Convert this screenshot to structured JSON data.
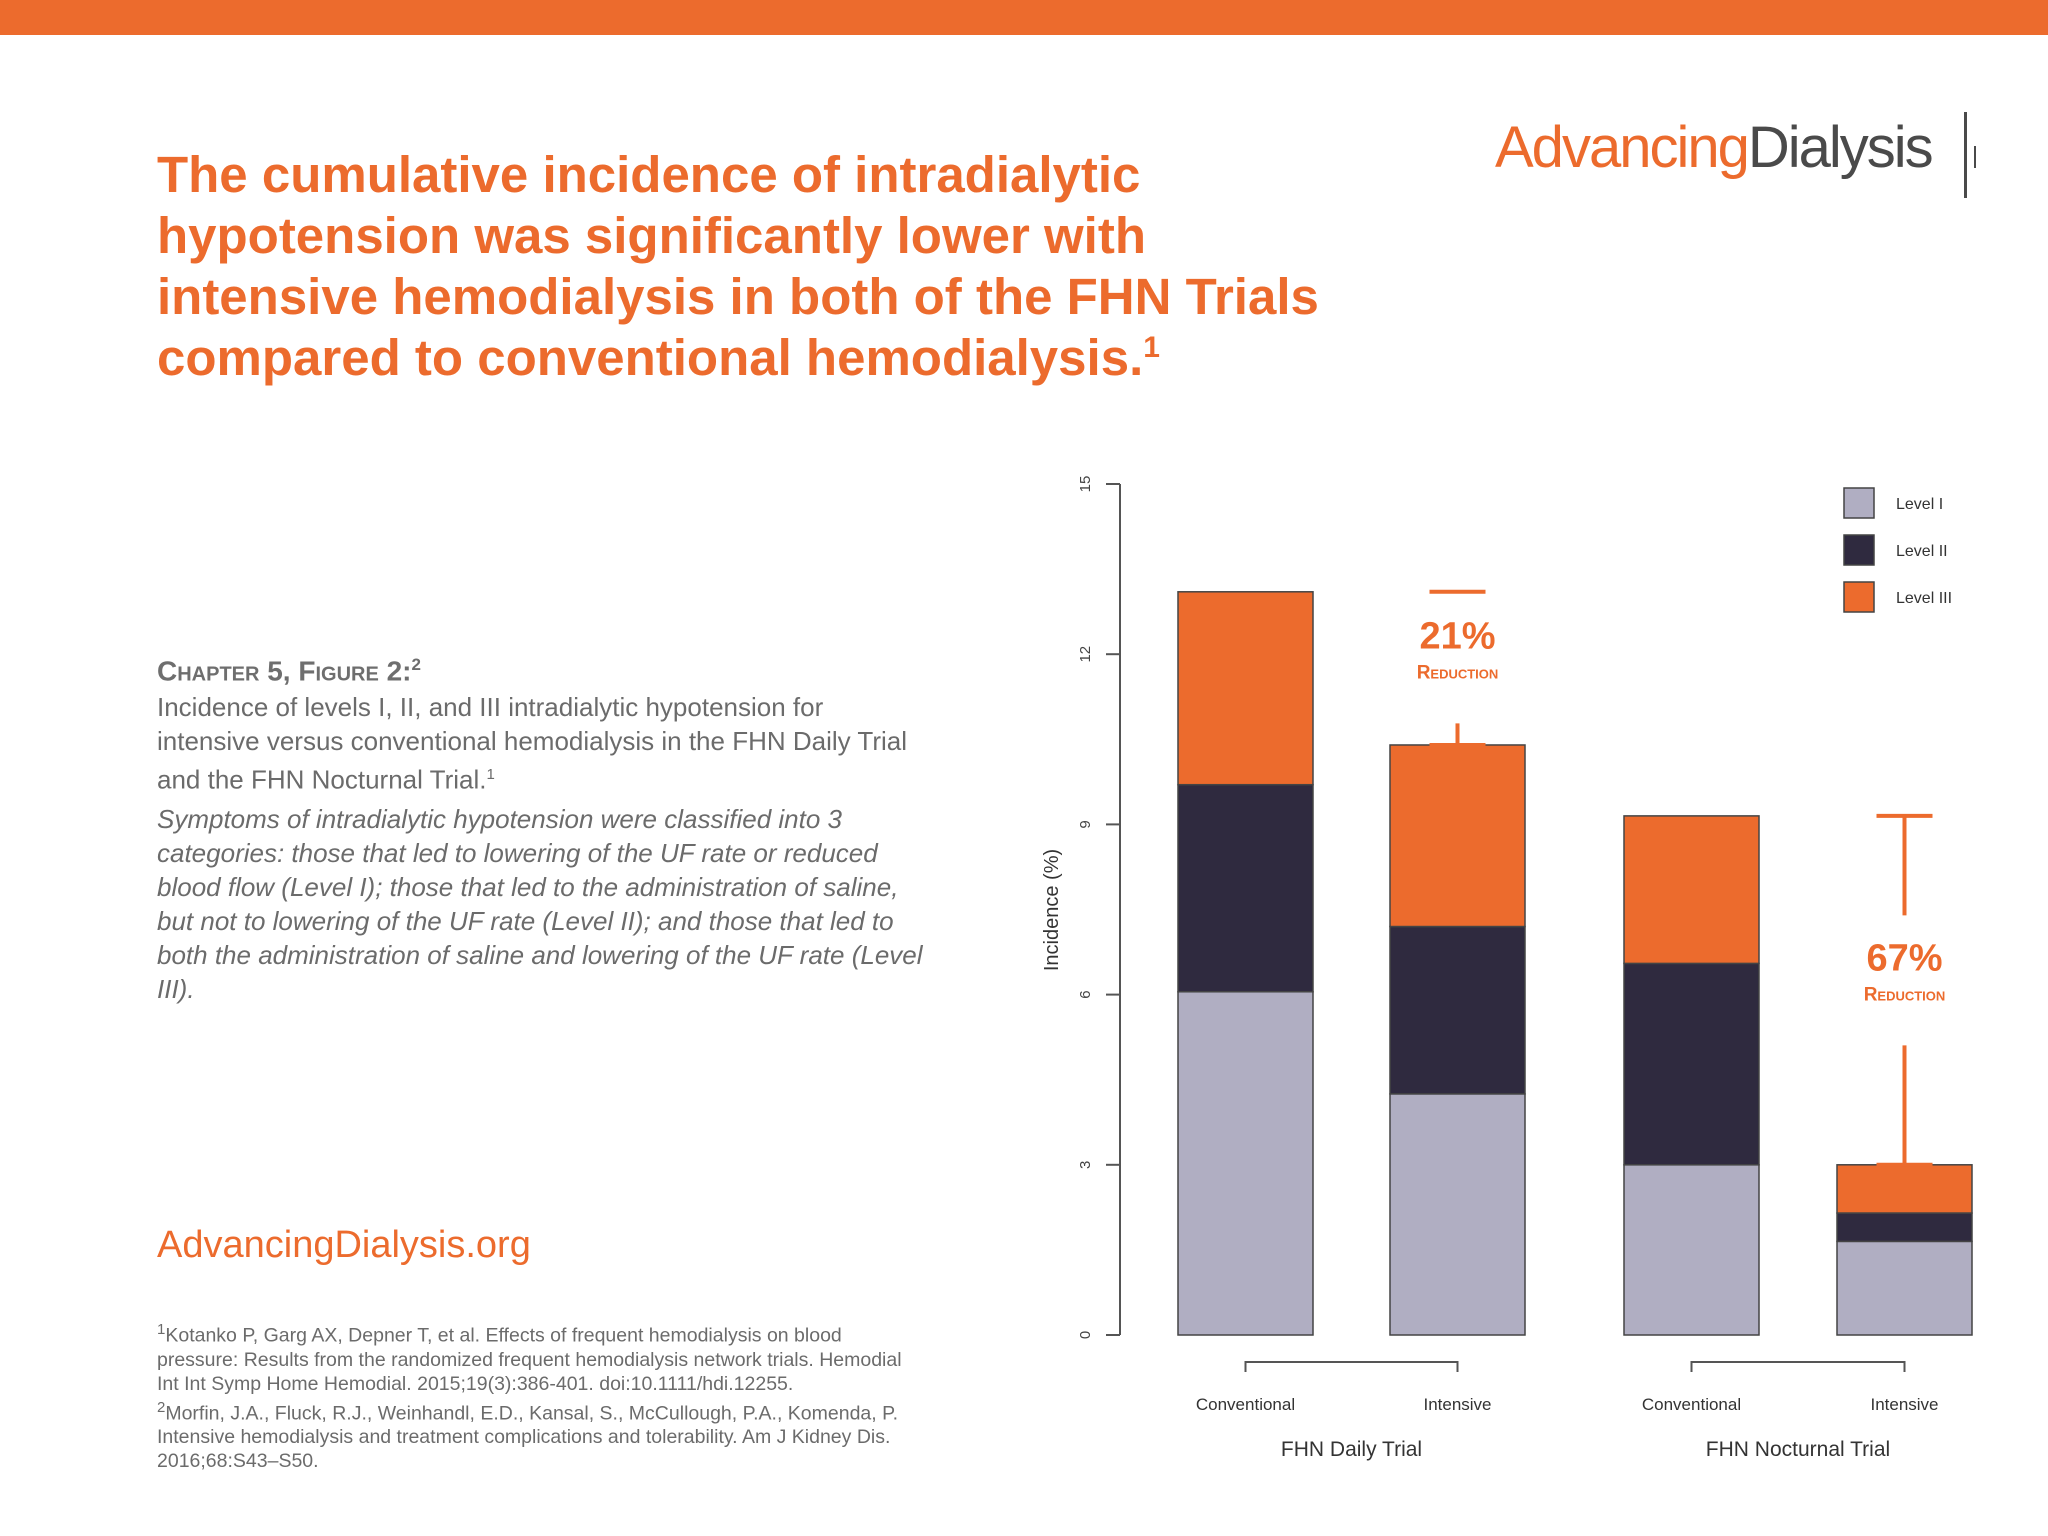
{
  "header": {
    "headline": "The cumulative incidence of intradialytic hypotension was significantly lower with intensive hemodialysis in both of the FHN Trials compared to conventional hemodialysis.",
    "headline_ref": "1",
    "logo_part1": "Advancing",
    "logo_part2": "Dialysis"
  },
  "figure": {
    "label": "Chapter 5, Figure 2:",
    "label_ref": "2",
    "caption": "Incidence of levels I, II, and III intradialytic hypotension for intensive versus conventional hemodialysis in the FHN Daily Trial and the FHN Nocturnal Trial.",
    "caption_ref": "1",
    "note": "Symptoms of intradialytic hypotension were classified into 3 categories: those that led to lowering of the UF rate or reduced blood flow (Level I); those that led to the administration of saline, but not to lowering of the UF rate (Level II); and those that led to both the administration of saline and lowering of the UF rate (Level III)."
  },
  "footer": {
    "website": "AdvancingDialysis.org",
    "ref1_mark": "1",
    "ref1": "Kotanko P, Garg AX, Depner T, et al. Effects of frequent hemodialysis on blood pressure: Results from the randomized frequent hemodialysis network trials. Hemodial Int Int Symp Home Hemodial. 2015;19(3):386-401. doi:10.1111/hdi.12255.",
    "ref2_mark": "2",
    "ref2": "Morfin, J.A., Fluck, R.J., Weinhandl, E.D., Kansal, S., McCullough, P.A., Komenda, P. Intensive hemodialysis and treatment complications and tolerability. Am J Kidney Dis. 2016;68:S43–S50."
  },
  "colors": {
    "accent": "#ec6b2d",
    "level1": "#b0aec2",
    "level2": "#2f2a3f",
    "level3": "#ec6b2d",
    "text": "#6b6b6b"
  },
  "chart_data": {
    "type": "bar",
    "stacked": true,
    "ylabel": "Incidence (%)",
    "ylim": [
      0,
      15
    ],
    "yticks": [
      0,
      3,
      6,
      9,
      12,
      15
    ],
    "categories": [
      "Conventional",
      "Intensive",
      "Conventional",
      "Intensive"
    ],
    "groups": [
      {
        "label": "FHN Daily Trial",
        "categories": [
          0,
          1
        ]
      },
      {
        "label": "FHN Nocturnal Trial",
        "categories": [
          2,
          3
        ]
      }
    ],
    "series": [
      {
        "name": "Level I",
        "values": [
          6.05,
          4.25,
          3.0,
          1.65
        ]
      },
      {
        "name": "Level II",
        "values": [
          3.65,
          2.95,
          3.55,
          0.5
        ]
      },
      {
        "name": "Level III",
        "values": [
          3.4,
          3.2,
          2.6,
          0.85
        ]
      }
    ],
    "legend": "top-right",
    "annotations": [
      {
        "value": "21%",
        "text": "Reduction",
        "from": 0,
        "to": 1
      },
      {
        "value": "67%",
        "text": "Reduction",
        "from": 2,
        "to": 3
      }
    ]
  }
}
